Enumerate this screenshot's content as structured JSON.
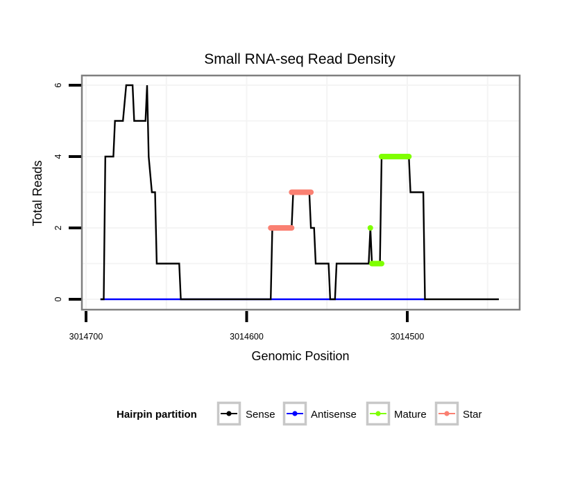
{
  "chart_data": {
    "type": "line",
    "title": "Small RNA-seq Read Density",
    "xlabel": "Genomic Position",
    "ylabel": "Total Reads",
    "xlim": [
      3014710,
      3014437
    ],
    "x_reversed": true,
    "ylim": [
      -0.3,
      6.3
    ],
    "x_ticks": [
      3014700,
      3014600,
      3014500
    ],
    "x_tick_labels": [
      "3014700",
      "3014600",
      "3014500"
    ],
    "x_minor_grid": [
      3014650,
      3014550,
      3014450
    ],
    "y_ticks": [
      0,
      2,
      4,
      6
    ],
    "y_tick_labels": [
      "0",
      "2",
      "4",
      "6"
    ],
    "y_minor_grid": [
      1,
      3,
      5
    ],
    "grid": true,
    "legend": {
      "title": "Hairpin partition",
      "placement": "bottom",
      "entries": [
        {
          "name": "Sense",
          "color": "#000000"
        },
        {
          "name": "Antisense",
          "color": "#0000ff"
        },
        {
          "name": "Mature",
          "color": "#7fff00"
        },
        {
          "name": "Star",
          "color": "#fa8072"
        }
      ]
    },
    "series": [
      {
        "name": "Antisense",
        "color": "#0000ff",
        "style": "line",
        "points": [
          [
            3014691,
            0
          ],
          [
            3014489,
            0
          ]
        ]
      },
      {
        "name": "Sense",
        "color": "#000000",
        "style": "line",
        "points": [
          [
            3014691,
            0
          ],
          [
            3014689,
            0
          ],
          [
            3014688,
            4
          ],
          [
            3014683,
            4
          ],
          [
            3014682,
            5
          ],
          [
            3014677,
            5
          ],
          [
            3014675,
            6
          ],
          [
            3014671,
            6
          ],
          [
            3014670,
            5
          ],
          [
            3014663,
            5
          ],
          [
            3014662,
            6
          ],
          [
            3014661,
            4
          ],
          [
            3014659,
            3
          ],
          [
            3014657,
            3
          ],
          [
            3014656,
            1
          ],
          [
            3014642,
            1
          ],
          [
            3014641,
            0
          ],
          [
            3014585,
            0
          ],
          [
            3014584,
            2
          ],
          [
            3014572,
            2
          ],
          [
            3014571,
            3
          ],
          [
            3014561,
            3
          ],
          [
            3014560,
            2
          ],
          [
            3014558,
            2
          ],
          [
            3014557,
            1
          ],
          [
            3014549,
            1
          ],
          [
            3014548,
            0
          ],
          [
            3014545,
            0
          ],
          [
            3014544,
            1
          ],
          [
            3014524,
            1
          ],
          [
            3014523,
            2
          ],
          [
            3014522,
            1
          ],
          [
            3014517,
            1
          ],
          [
            3014516,
            4
          ],
          [
            3014499,
            4
          ],
          [
            3014498,
            3
          ],
          [
            3014490,
            3
          ],
          [
            3014489,
            0
          ],
          [
            3014443,
            0
          ]
        ]
      },
      {
        "name": "Mature",
        "color": "#7fff00",
        "style": "thick-segment",
        "segments": [
          {
            "from": 3014523,
            "to": 3014523,
            "reads": 2
          },
          {
            "from": 3014522,
            "to": 3014516,
            "reads": 1
          },
          {
            "from": 3014516,
            "to": 3014499,
            "reads": 4
          }
        ]
      },
      {
        "name": "Star",
        "color": "#fa8072",
        "style": "thick-segment",
        "segments": [
          {
            "from": 3014585,
            "to": 3014572,
            "reads": 2
          },
          {
            "from": 3014572,
            "to": 3014560,
            "reads": 3
          }
        ]
      }
    ]
  }
}
